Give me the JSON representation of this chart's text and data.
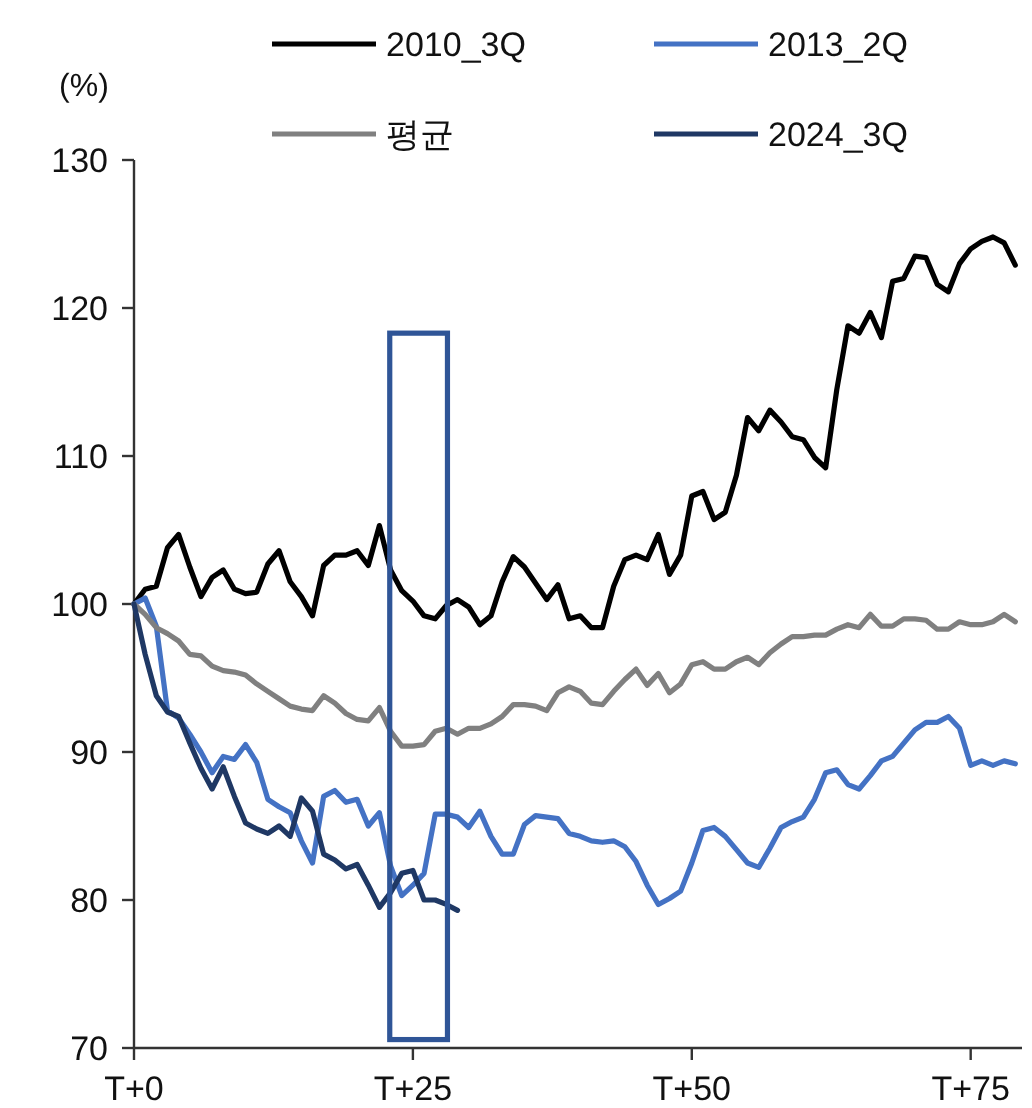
{
  "chart_data": {
    "type": "line",
    "ylabel": "(%)",
    "legend": "top",
    "categories": [
      "T+0",
      null,
      null,
      null,
      null,
      null,
      null,
      null,
      null,
      null,
      null,
      null,
      null,
      null,
      null,
      null,
      null,
      null,
      null,
      null,
      null,
      null,
      null,
      null,
      null,
      "T+25",
      null,
      null,
      null,
      null,
      null,
      null,
      null,
      null,
      null,
      null,
      null,
      null,
      null,
      null,
      null,
      null,
      null,
      null,
      null,
      null,
      null,
      null,
      null,
      null,
      "T+50",
      null,
      null,
      null,
      null,
      null,
      null,
      null,
      null,
      null,
      null,
      null,
      null,
      null,
      null,
      null,
      null,
      null,
      null,
      null,
      null,
      null,
      null,
      null,
      null,
      "T+75",
      null,
      null,
      null,
      null
    ],
    "ylim": [
      70,
      130
    ],
    "yticks": [
      70,
      80,
      90,
      100,
      110,
      120,
      130
    ],
    "series": [
      {
        "name": "2010_3Q",
        "color": "#000000",
        "values": [
          100,
          101,
          101.2,
          103.8,
          104.7,
          102.5,
          100.5,
          101.8,
          102.3,
          101,
          100.7,
          100.8,
          102.7,
          103.6,
          101.5,
          100.5,
          99.2,
          102.6,
          103.3,
          103.3,
          103.6,
          102.6,
          105.3,
          102.3,
          100.9,
          100.2,
          99.2,
          99,
          99.9,
          100.3,
          99.8,
          98.6,
          99.2,
          101.5,
          103.2,
          102.5,
          101.4,
          100.3,
          101.3,
          99,
          99.2,
          98.4,
          98.4,
          101.2,
          103,
          103.3,
          103,
          104.7,
          102,
          103.3,
          107.3,
          107.6,
          105.7,
          106.2,
          108.7,
          112.6,
          111.7,
          113.1,
          112.3,
          111.3,
          111.1,
          109.9,
          109.2,
          114.5,
          118.8,
          118.3,
          119.7,
          118,
          121.8,
          122,
          123.5,
          123.4,
          121.6,
          121.1,
          123,
          124,
          124.5,
          124.8,
          124.4,
          122.9
        ]
      },
      {
        "name": "2013_2Q",
        "color": "#4472c4",
        "values": [
          100,
          100.4,
          98.5,
          92.8,
          92.3,
          91.2,
          90,
          88.6,
          89.7,
          89.5,
          90.5,
          89.3,
          86.8,
          86.3,
          85.9,
          84,
          82.5,
          87,
          87.4,
          86.6,
          86.8,
          85,
          85.9,
          82.3,
          80.3,
          81,
          81.8,
          85.8,
          85.8,
          85.6,
          84.9,
          86,
          84.3,
          83.1,
          83.1,
          85.1,
          85.7,
          85.6,
          85.5,
          84.5,
          84.3,
          84,
          83.9,
          84,
          83.6,
          82.6,
          81,
          79.7,
          80.1,
          80.6,
          82.5,
          84.7,
          84.9,
          84.3,
          83.4,
          82.5,
          82.2,
          83.5,
          84.9,
          85.3,
          85.6,
          86.8,
          88.6,
          88.8,
          87.8,
          87.5,
          88.4,
          89.4,
          89.7,
          90.6,
          91.5,
          92,
          92,
          92.4,
          91.6,
          89.1,
          89.4,
          89.1,
          89.4,
          89.2
        ]
      },
      {
        "name": "평균",
        "color": "#808080",
        "values": [
          100,
          99.3,
          98.4,
          98,
          97.5,
          96.6,
          96.5,
          95.8,
          95.5,
          95.4,
          95.2,
          94.6,
          94.1,
          93.6,
          93.1,
          92.9,
          92.8,
          93.8,
          93.3,
          92.6,
          92.2,
          92.1,
          93,
          91.4,
          90.4,
          90.4,
          90.5,
          91.4,
          91.6,
          91.2,
          91.6,
          91.6,
          91.9,
          92.4,
          93.2,
          93.2,
          93.1,
          92.8,
          94,
          94.4,
          94.1,
          93.3,
          93.2,
          94.1,
          94.9,
          95.6,
          94.5,
          95.3,
          94,
          94.6,
          95.9,
          96.1,
          95.6,
          95.6,
          96.1,
          96.4,
          95.9,
          96.7,
          97.3,
          97.8,
          97.8,
          97.9,
          97.9,
          98.3,
          98.6,
          98.4,
          99.3,
          98.5,
          98.5,
          99,
          99,
          98.9,
          98.3,
          98.3,
          98.8,
          98.6,
          98.6,
          98.8,
          99.3,
          98.8
        ]
      },
      {
        "name": "2024_3Q",
        "color": "#1f3864",
        "values": [
          100,
          96.6,
          93.8,
          92.7,
          92.4,
          90.6,
          88.9,
          87.5,
          89,
          87,
          85.2,
          84.8,
          84.5,
          85,
          84.3,
          86.9,
          86,
          83.1,
          82.7,
          82.1,
          82.4,
          81,
          79.5,
          80.5,
          81.8,
          82,
          80,
          80,
          79.7,
          79.3,
          null,
          null,
          null,
          null,
          null,
          null,
          null,
          null,
          null,
          null,
          null,
          null,
          null,
          null,
          null,
          null,
          null,
          null,
          null,
          null,
          null,
          null,
          null,
          null,
          null,
          null,
          null,
          null,
          null,
          null,
          null,
          null,
          null,
          null,
          null,
          null,
          null,
          null,
          null,
          null,
          null,
          null,
          null,
          null,
          null,
          null,
          null,
          null,
          null,
          null
        ]
      }
    ]
  }
}
